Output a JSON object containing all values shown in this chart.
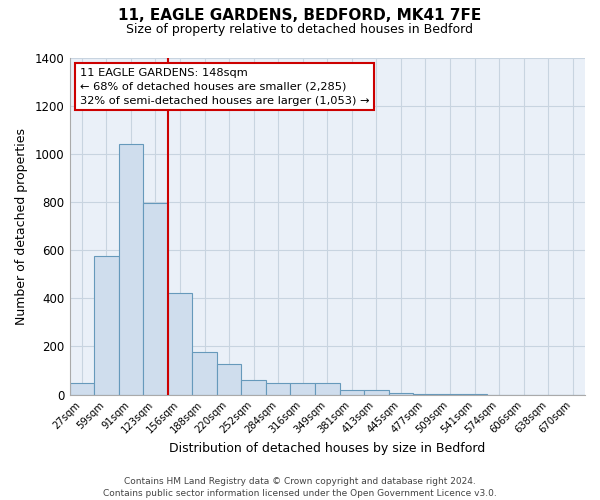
{
  "title": "11, EAGLE GARDENS, BEDFORD, MK41 7FE",
  "subtitle": "Size of property relative to detached houses in Bedford",
  "xlabel": "Distribution of detached houses by size in Bedford",
  "ylabel": "Number of detached properties",
  "bar_color": "#cfdded",
  "bar_edge_color": "#6699bb",
  "annotation_line_color": "#cc0000",
  "categories": [
    "27sqm",
    "59sqm",
    "91sqm",
    "123sqm",
    "156sqm",
    "188sqm",
    "220sqm",
    "252sqm",
    "284sqm",
    "316sqm",
    "349sqm",
    "381sqm",
    "413sqm",
    "445sqm",
    "477sqm",
    "509sqm",
    "541sqm",
    "574sqm",
    "606sqm",
    "638sqm",
    "670sqm"
  ],
  "values": [
    50,
    575,
    1040,
    795,
    420,
    175,
    125,
    62,
    50,
    50,
    48,
    20,
    18,
    5,
    3,
    2,
    1,
    0,
    0,
    0,
    0
  ],
  "ylim": [
    0,
    1400
  ],
  "yticks": [
    0,
    200,
    400,
    600,
    800,
    1000,
    1200,
    1400
  ],
  "annotation_line_idx": 4,
  "annotation_box_text_line1": "11 EAGLE GARDENS: 148sqm",
  "annotation_box_text_line2": "← 68% of detached houses are smaller (2,285)",
  "annotation_box_text_line3": "32% of semi-detached houses are larger (1,053) →",
  "footer_line1": "Contains HM Land Registry data © Crown copyright and database right 2024.",
  "footer_line2": "Contains public sector information licensed under the Open Government Licence v3.0.",
  "background_color": "#ffffff",
  "plot_bg_color": "#eaf0f8",
  "grid_color": "#c8d4e0"
}
